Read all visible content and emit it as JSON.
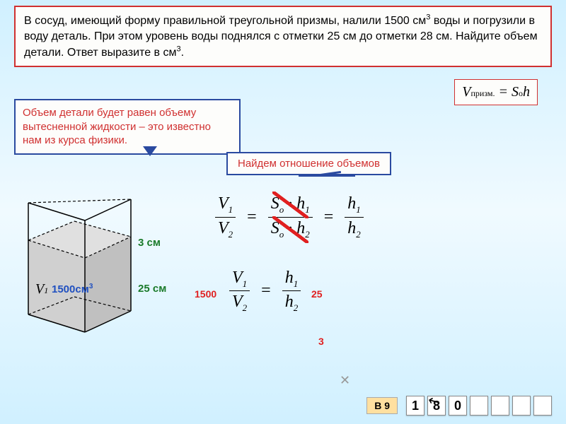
{
  "problem": {
    "text_html": "В сосуд, имеющий форму правильной треугольной призмы, налили 1500 см<sup>3</sup> воды и погрузили в воду деталь. При этом уровень воды поднялся с отметки 25 см до отметки 28 см. Найдите объем детали. Ответ выразите в см<sup>3</sup>."
  },
  "formula": {
    "lhs": "V",
    "lhs_sub": "призм.",
    "rhs": "S",
    "rhs_sub": "о",
    "h": "h"
  },
  "callout1": "Объем детали будет равен объему вытесненной жидкости – это известно нам из курса физики.",
  "callout2": "Найдем отношение объемов",
  "prism": {
    "h1_label": "3 см",
    "h2_label": "25 см",
    "vol_label": "1500см",
    "vol_exp": "3",
    "v_symbol": "V",
    "v_sub": "1",
    "water_fill": "#d0d0d0",
    "outline": "#000000",
    "dash": "4,3"
  },
  "equations": {
    "row1": {
      "f1": {
        "num": "V<sub class='sub'>1</sub>",
        "den": "V<sub class='sub'>2</sub>"
      },
      "f2": {
        "num": "S<sub class='sub'>о</sub> · h<sub class='sub'>1</sub>",
        "den": "S<sub class='sub'>о</sub> · h<sub class='sub'>2</sub>"
      },
      "f3": {
        "num": "h<sub class='sub'>1</sub>",
        "den": "h<sub class='sub'>2</sub>"
      }
    },
    "row2": {
      "f1": {
        "num": "V<sub class='sub'>1</sub>",
        "den": "V<sub class='sub'>2</sub>"
      },
      "f2": {
        "num": "h<sub class='sub'>1</sub>",
        "den": "h<sub class='sub'>2</sub>"
      }
    },
    "ann_1500": "1500",
    "ann_25": "25",
    "ann_3": "3"
  },
  "answer": {
    "label": "В 9",
    "cells": [
      "1",
      "8",
      "0",
      "",
      "",
      "",
      ""
    ]
  },
  "colors": {
    "red": "#d03030",
    "blue": "#2a4aa0",
    "green": "#1a7a2a"
  }
}
